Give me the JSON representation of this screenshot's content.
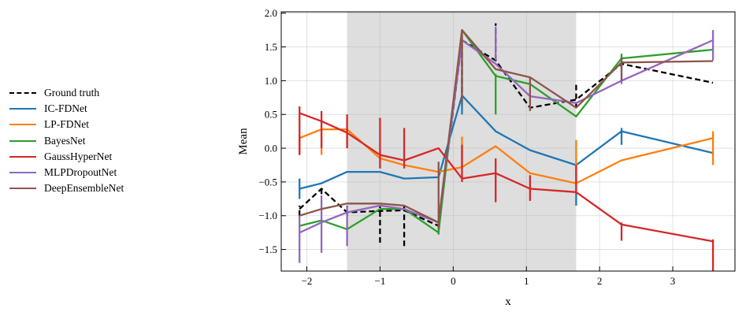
{
  "chart_data": {
    "type": "line",
    "xlabel": "x",
    "ylabel": "Mean",
    "xlim": [
      -2.35,
      3.85
    ],
    "ylim": [
      -1.82,
      2.02
    ],
    "xticks": [
      -2,
      -1,
      0,
      1,
      2,
      3
    ],
    "yticks": [
      -1.5,
      -1.0,
      -0.5,
      0.0,
      0.5,
      1.0,
      1.5,
      2.0
    ],
    "xtick_labels": [
      "−2",
      "−1",
      "0",
      "1",
      "2",
      "3"
    ],
    "ytick_labels": [
      "−1.5",
      "−1.0",
      "−0.5",
      "0.0",
      "0.5",
      "1.0",
      "1.5",
      "2.0"
    ],
    "grid": true,
    "shaded_region": [
      -1.45,
      1.68
    ],
    "legend_position": "outside-left",
    "x": [
      -2.1,
      -1.8,
      -1.45,
      -1.0,
      -0.67,
      -0.2,
      0.12,
      0.58,
      1.05,
      1.68,
      2.3,
      3.55
    ],
    "series": [
      {
        "name": "Ground truth",
        "color": "#000000",
        "dashed": true,
        "values": [
          -0.9,
          -0.6,
          -0.95,
          -0.93,
          -0.92,
          -1.15,
          1.6,
          1.3,
          0.6,
          0.72,
          1.25,
          0.97
        ],
        "jumps": [
          [
            -2.1,
            -1.0,
            -0.85
          ],
          [
            -1.8,
            -0.68,
            -0.55
          ],
          [
            -1.45,
            -1.0,
            -0.85
          ],
          [
            -1.0,
            -1.4,
            -0.85
          ],
          [
            -0.67,
            -1.45,
            -0.85
          ],
          [
            0.12,
            0.7,
            1.6
          ],
          [
            0.58,
            1.3,
            1.85
          ],
          [
            1.68,
            0.6,
            0.98
          ]
        ]
      },
      {
        "name": "IC-FDNet",
        "color": "#1f77b4",
        "values": [
          -0.6,
          -0.52,
          -0.35,
          -0.35,
          -0.45,
          -0.43,
          0.78,
          0.25,
          -0.03,
          -0.25,
          0.25,
          -0.07
        ],
        "jumps": [
          [
            -2.1,
            -0.75,
            -0.45
          ],
          [
            0.12,
            0.5,
            1.0
          ],
          [
            1.68,
            -0.85,
            -0.25
          ],
          [
            2.3,
            0.05,
            0.3
          ]
        ]
      },
      {
        "name": "LP-FDNet",
        "color": "#ff7f0e",
        "values": [
          0.15,
          0.28,
          0.28,
          -0.15,
          -0.25,
          -0.35,
          -0.28,
          0.03,
          -0.37,
          -0.52,
          -0.18,
          0.15
        ],
        "jumps": [
          [
            -2.1,
            -0.1,
            0.2
          ],
          [
            -1.8,
            -0.1,
            0.32
          ],
          [
            -1.45,
            0.0,
            0.3
          ],
          [
            0.12,
            -0.3,
            0.17
          ],
          [
            1.68,
            -0.25,
            0.12
          ],
          [
            3.55,
            -0.25,
            0.25
          ]
        ]
      },
      {
        "name": "BayesNet",
        "color": "#2ca02c",
        "values": [
          -1.15,
          -1.07,
          -1.2,
          -0.9,
          -0.9,
          -1.25,
          1.75,
          1.07,
          0.95,
          0.47,
          1.33,
          1.46
        ],
        "jumps": [
          [
            -0.2,
            -1.28,
            -1.1
          ],
          [
            0.58,
            0.5,
            1.1
          ],
          [
            2.3,
            1.2,
            1.4
          ]
        ]
      },
      {
        "name": "GaussHyperNet",
        "color": "#d62728",
        "values": [
          0.52,
          0.4,
          0.23,
          -0.1,
          -0.18,
          0.0,
          -0.45,
          -0.37,
          -0.6,
          -0.65,
          -1.13,
          -1.38
        ],
        "jumps": [
          [
            -2.1,
            -0.1,
            0.62
          ],
          [
            -1.8,
            0.0,
            0.55
          ],
          [
            -1.45,
            0.0,
            0.5
          ],
          [
            -1.0,
            -0.3,
            0.45
          ],
          [
            -0.67,
            -0.3,
            0.3
          ],
          [
            0.12,
            -0.5,
            0.05
          ],
          [
            0.58,
            -0.8,
            -0.15
          ],
          [
            1.05,
            -0.78,
            -0.4
          ],
          [
            1.68,
            -0.65,
            -0.25
          ],
          [
            2.3,
            -1.37,
            -1.1
          ],
          [
            3.55,
            -1.82,
            -1.35
          ]
        ]
      },
      {
        "name": "MLPDropoutNet",
        "color": "#9467bd",
        "values": [
          -1.25,
          -1.1,
          -0.95,
          -0.85,
          -0.9,
          -1.1,
          1.6,
          1.25,
          0.77,
          0.67,
          1.0,
          1.6
        ],
        "jumps": [
          [
            -2.1,
            -1.7,
            -1.0
          ],
          [
            -1.8,
            -1.55,
            -0.7
          ],
          [
            -1.45,
            -1.45,
            -0.85
          ],
          [
            0.12,
            1.0,
            1.75
          ],
          [
            0.58,
            1.3,
            1.8
          ],
          [
            2.3,
            0.95,
            1.25
          ],
          [
            3.55,
            1.3,
            1.75
          ]
        ]
      },
      {
        "name": "DeepEnsembleNet",
        "color": "#8c564b",
        "values": [
          -1.0,
          -0.9,
          -0.82,
          -0.82,
          -0.85,
          -1.1,
          1.75,
          1.17,
          1.05,
          0.6,
          1.27,
          1.29
        ],
        "jumps": [
          [
            -0.2,
            -1.2,
            -0.2
          ],
          [
            0.12,
            0.65,
            1.75
          ],
          [
            1.05,
            0.55,
            1.05
          ],
          [
            2.3,
            1.0,
            1.35
          ]
        ]
      }
    ]
  }
}
